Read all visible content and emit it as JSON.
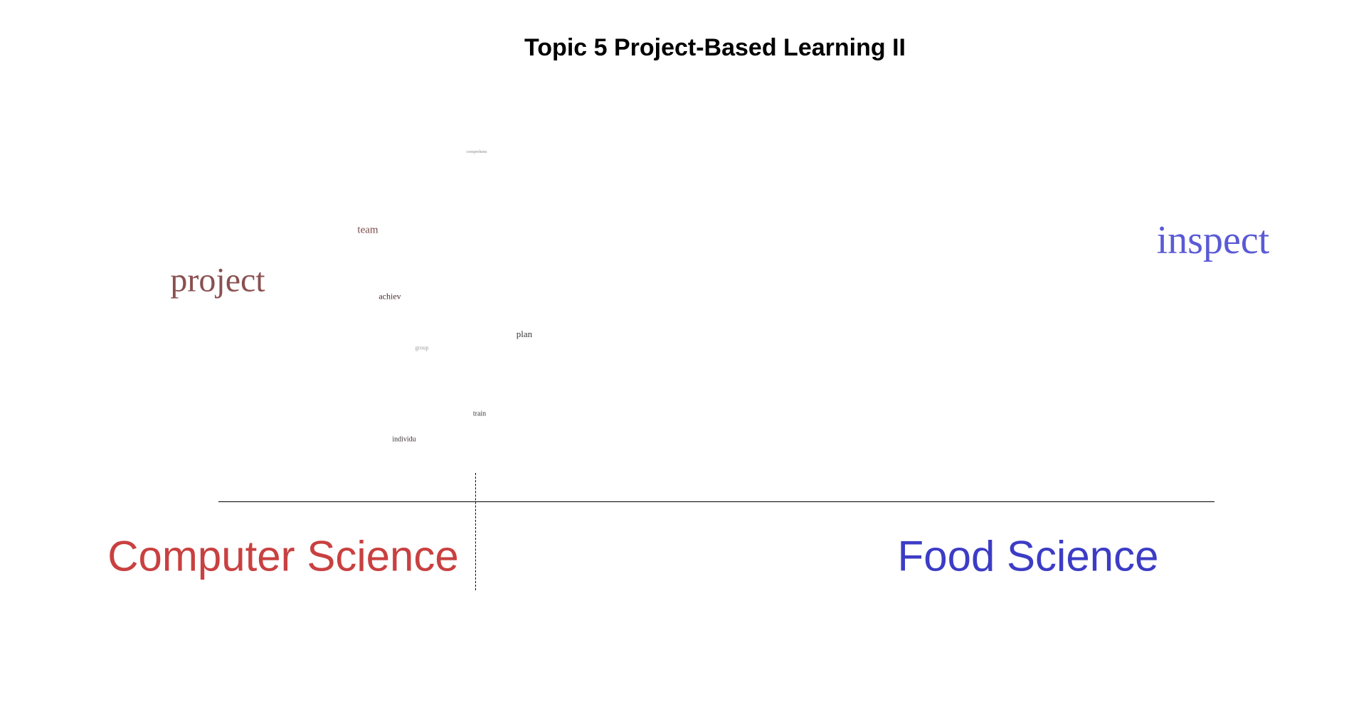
{
  "title": "Topic 5 Project-Based Learning II",
  "groups": {
    "left": {
      "label": "Computer Science",
      "color": "#c94040"
    },
    "right": {
      "label": "Food Science",
      "color": "#3c3cc6"
    }
  },
  "words": [
    {
      "text": "comprehens",
      "color": "#8a8a8a"
    },
    {
      "text": "team",
      "color": "#7a4a4a"
    },
    {
      "text": "project",
      "color": "#8a5050"
    },
    {
      "text": "achiev",
      "color": "#4a2e2e"
    },
    {
      "text": "plan",
      "color": "#3a3a3a"
    },
    {
      "text": "group",
      "color": "#9a9a9a"
    },
    {
      "text": "train",
      "color": "#3a3a3a"
    },
    {
      "text": "individu",
      "color": "#3a2e2e"
    },
    {
      "text": "inspect",
      "color": "#5a5ad6"
    }
  ]
}
